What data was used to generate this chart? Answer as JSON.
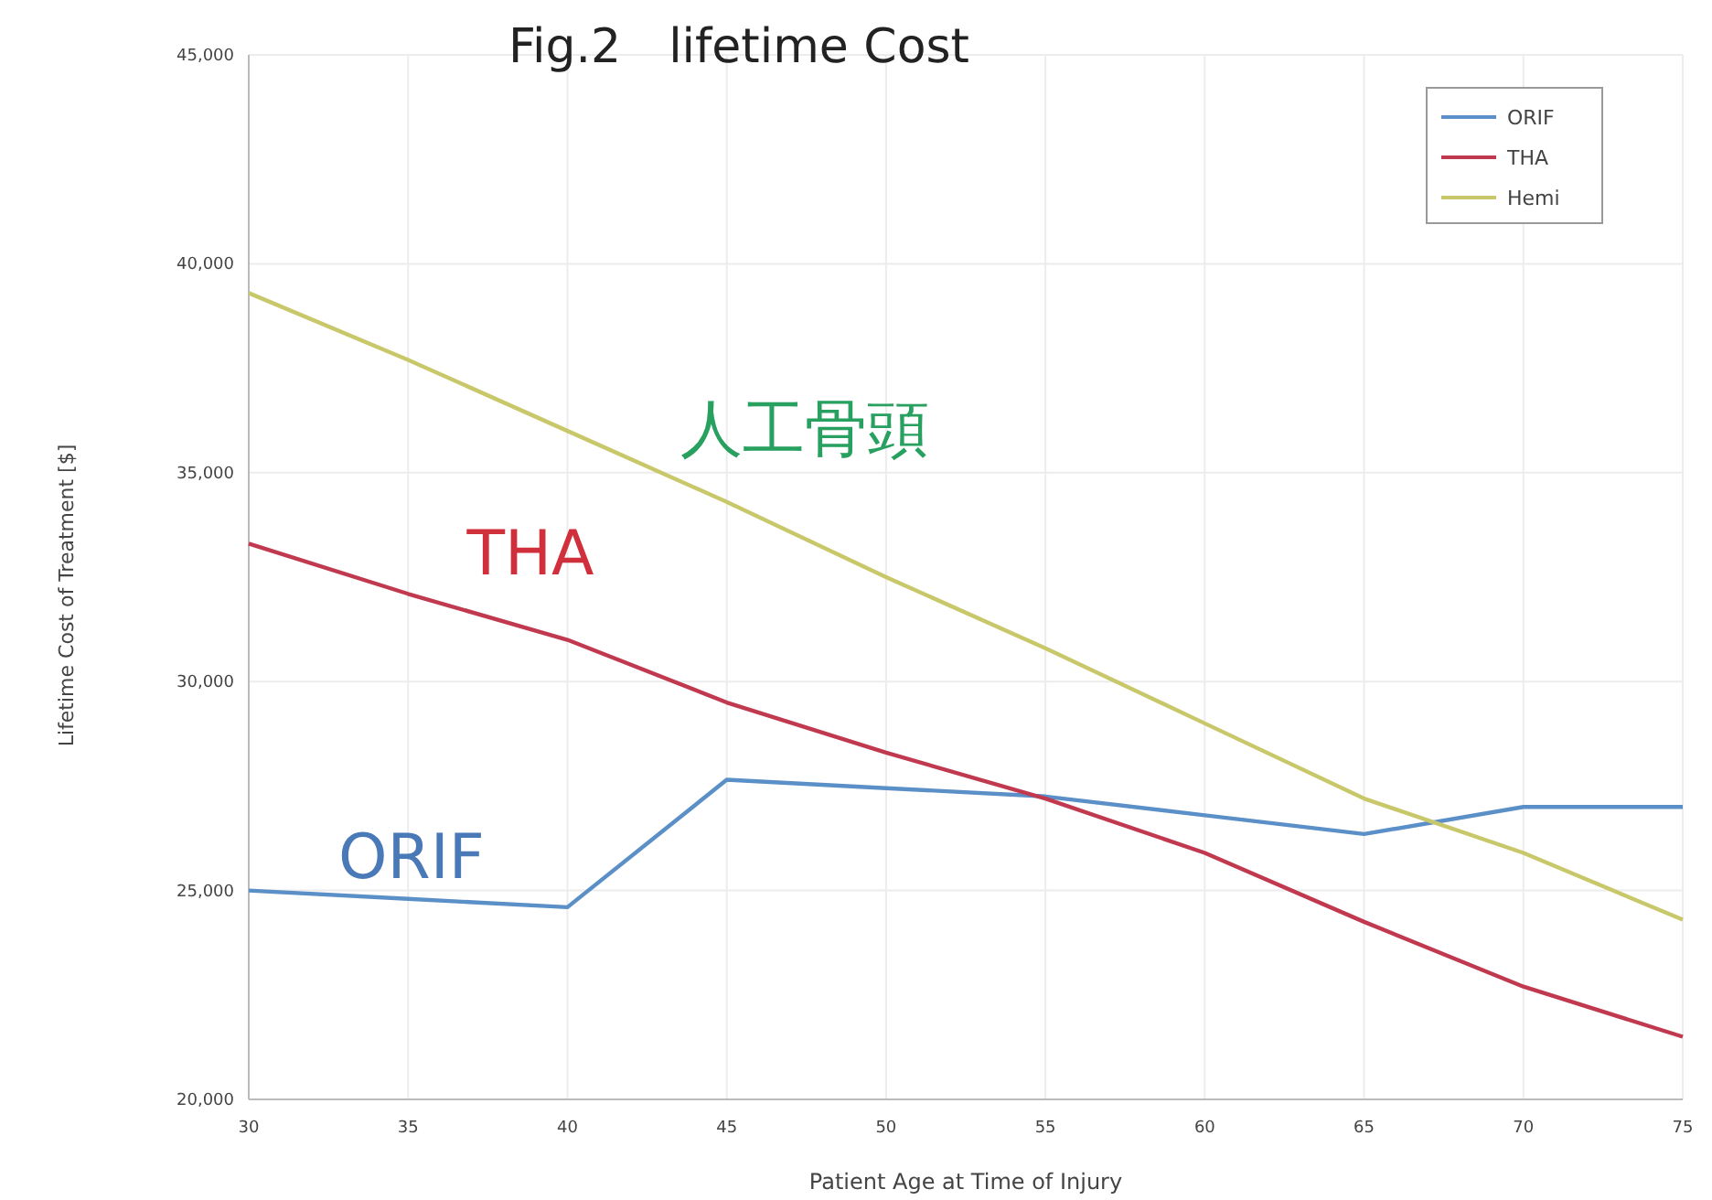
{
  "chart_data": {
    "type": "line",
    "title": "Fig.2　lifetime Cost",
    "xlabel": "Patient Age at Time of Injury",
    "ylabel": "Lifetime Cost of Treatment [$]",
    "x": [
      30,
      35,
      40,
      45,
      50,
      55,
      60,
      65,
      70,
      75
    ],
    "series": [
      {
        "name": "ORIF",
        "color": "#5b8fc7",
        "values": [
          25000,
          24800,
          24600,
          27650,
          27450,
          27250,
          26800,
          26350,
          27000,
          27000
        ]
      },
      {
        "name": "THA",
        "color": "#c0394f",
        "values": [
          33300,
          32100,
          31000,
          29500,
          28300,
          27200,
          25900,
          24250,
          22700,
          21500
        ]
      },
      {
        "name": "Hemi",
        "color": "#c8c86a",
        "values": [
          39300,
          37700,
          36000,
          34300,
          32500,
          30800,
          29000,
          27200,
          25900,
          24300
        ]
      }
    ],
    "xlim": [
      30,
      75
    ],
    "xticks": [
      30,
      35,
      40,
      45,
      50,
      55,
      60,
      65,
      70,
      75
    ],
    "ylim": [
      20000,
      45000
    ],
    "yticks": [
      {
        "value": 20000,
        "label": "20,000"
      },
      {
        "value": 25000,
        "label": "25,000"
      },
      {
        "value": 30000,
        "label": "30,000"
      },
      {
        "value": 35000,
        "label": "35,000"
      },
      {
        "value": 40000,
        "label": "40,000"
      },
      {
        "value": 45000,
        "label": "45,000"
      }
    ],
    "grid": true,
    "legend": "top right",
    "marker": "none",
    "line_style": "solid",
    "annotations": [
      "人工骨頭",
      "THA",
      "ORIF"
    ]
  }
}
